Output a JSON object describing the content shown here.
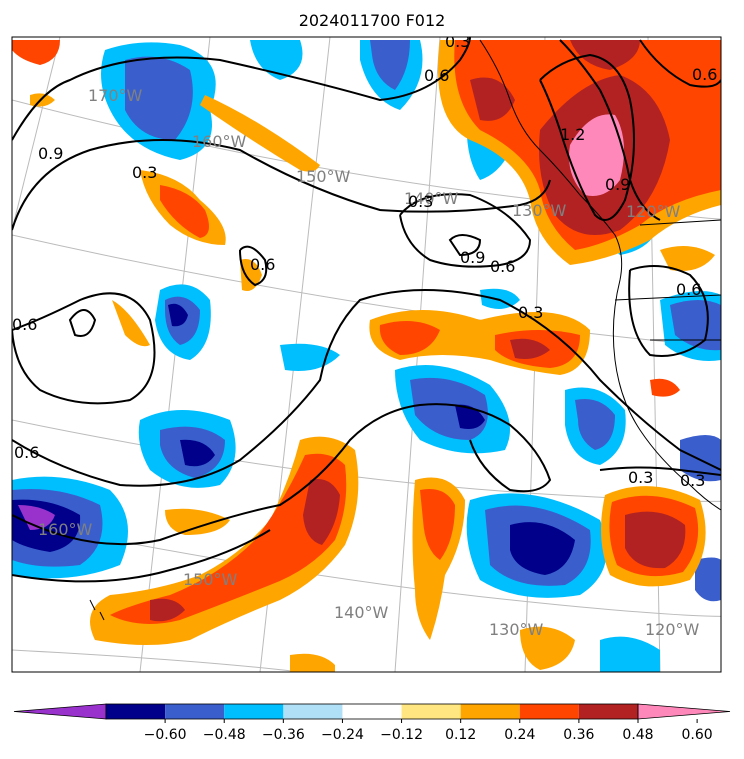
{
  "title": "2024011700 F012",
  "longitude_labels": [
    "170°W",
    "160°W",
    "150°W",
    "140°W",
    "130°W",
    "120°W",
    "160°W",
    "150°W",
    "140°W",
    "130°W",
    "120°W"
  ],
  "contour_labels": [
    "0.3",
    "0.6",
    "0.9",
    "0.3",
    "0.6",
    "0.9",
    "0.6",
    "0.3",
    "0.6",
    "0.3",
    "0.6",
    "0.6",
    "0.3",
    "0.3",
    "1.2",
    "0.9",
    "0.6"
  ],
  "colorbar": {
    "ticks": [
      "−0.60",
      "−0.48",
      "−0.36",
      "−0.24",
      "−0.12",
      "0.12",
      "0.24",
      "0.36",
      "0.48",
      "0.60"
    ],
    "colors": [
      "#9932cc",
      "#00008b",
      "#3a5fcd",
      "#00bfff",
      "#b0e0f8",
      "#ffffff",
      "#ffe680",
      "#ffa500",
      "#ff4500",
      "#b22222",
      "#ff88bb"
    ]
  }
}
